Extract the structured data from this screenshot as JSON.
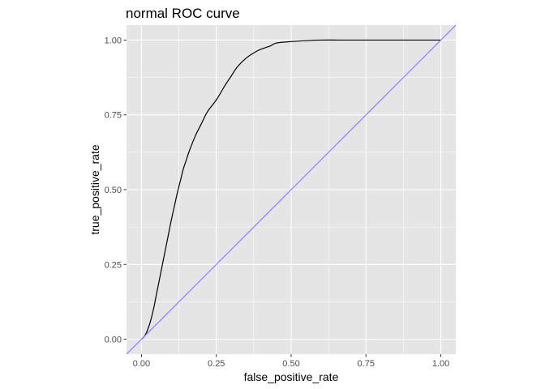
{
  "chart_data": {
    "type": "line",
    "title": "normal ROC curve",
    "xlabel": "false_positive_rate",
    "ylabel": "true_positive_rate",
    "xlim": [
      -0.05,
      1.05
    ],
    "ylim": [
      -0.05,
      1.05
    ],
    "x_ticks": [
      0.0,
      0.25,
      0.5,
      0.75,
      1.0
    ],
    "x_tick_labels": [
      "0.00",
      "0.25",
      "0.50",
      "0.75",
      "1.00"
    ],
    "y_ticks": [
      0.0,
      0.25,
      0.5,
      0.75,
      1.0
    ],
    "y_tick_labels": [
      "0.00",
      "0.25",
      "0.50",
      "0.75",
      "1.00"
    ],
    "grid": true,
    "background": "#e5e5e5",
    "grid_color": "#ffffff",
    "series": [
      {
        "color": "#000000",
        "x": [
          0.0,
          0.01,
          0.02,
          0.03,
          0.04,
          0.05,
          0.06,
          0.07,
          0.08,
          0.09,
          0.1,
          0.11,
          0.12,
          0.13,
          0.14,
          0.15,
          0.16,
          0.18,
          0.2,
          0.22,
          0.25,
          0.28,
          0.3,
          0.32,
          0.35,
          0.38,
          0.4,
          0.43,
          0.45,
          0.5,
          0.55,
          0.6,
          0.7,
          0.8,
          0.9,
          1.0
        ],
        "y": [
          0.0,
          0.01,
          0.03,
          0.06,
          0.1,
          0.15,
          0.2,
          0.25,
          0.3,
          0.35,
          0.4,
          0.445,
          0.49,
          0.53,
          0.57,
          0.6,
          0.63,
          0.68,
          0.72,
          0.76,
          0.8,
          0.85,
          0.88,
          0.91,
          0.94,
          0.96,
          0.97,
          0.98,
          0.99,
          0.995,
          0.998,
          1.0,
          1.0,
          1.0,
          1.0,
          1.0
        ]
      },
      {
        "color": "#7b7bff",
        "type": "abline",
        "intercept": 0,
        "slope": 1
      }
    ]
  }
}
